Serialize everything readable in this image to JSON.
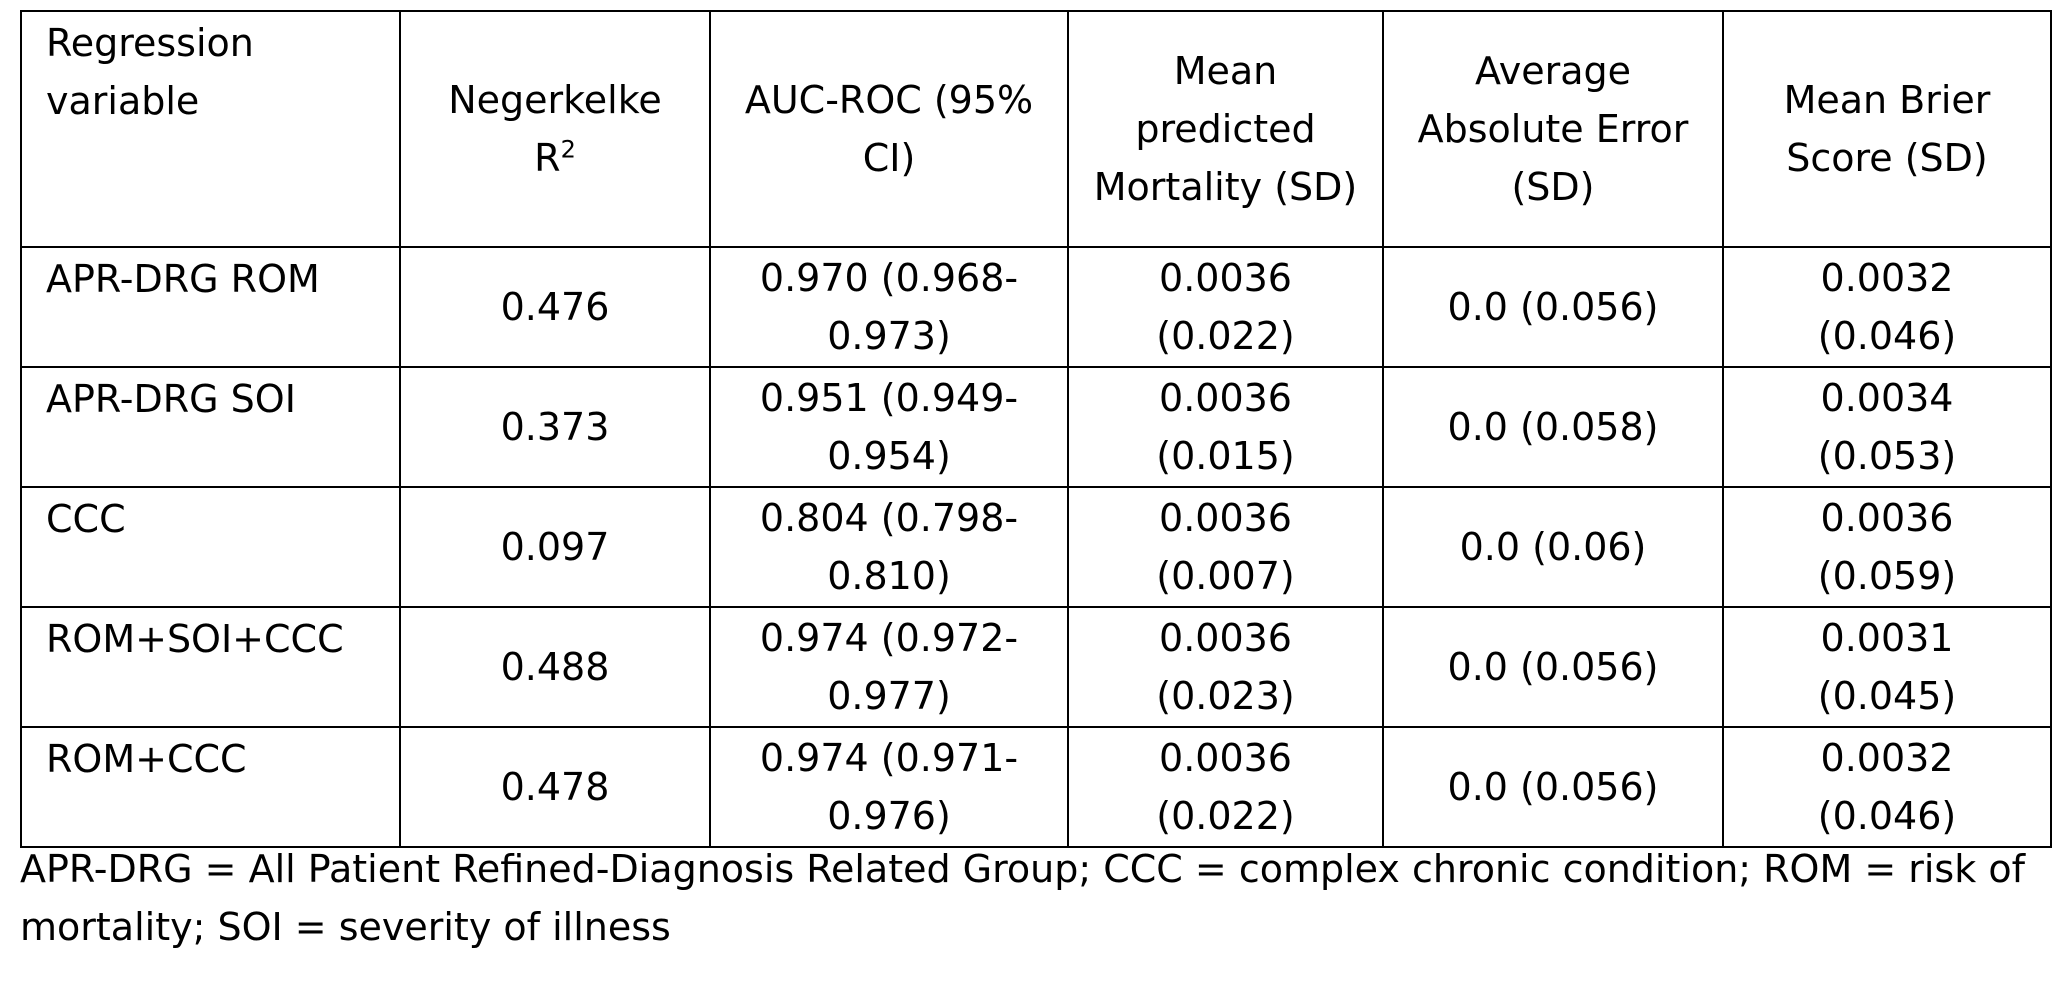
{
  "table": {
    "headers": [
      "Regression variable",
      "Negerkelke R",
      "AUC-ROC (95% CI)",
      "Mean predicted Mortality (SD)",
      "Average Absolute Error (SD)",
      "Mean Brier Score (SD)"
    ],
    "header_superscript": "2",
    "rows": [
      [
        "APR-DRG ROM",
        "0.476",
        "0.970 (0.968-\n0.973)",
        "0.0036\n(0.022)",
        "0.0 (0.056)",
        "0.0032\n(0.046)"
      ],
      [
        "APR-DRG SOI",
        "0.373",
        "0.951 (0.949-\n0.954)",
        "0.0036\n(0.015)",
        "0.0 (0.058)",
        "0.0034\n(0.053)"
      ],
      [
        "CCC",
        "0.097",
        "0.804 (0.798-\n0.810)",
        "0.0036\n(0.007)",
        "0.0 (0.06)",
        "0.0036\n(0.059)"
      ],
      [
        "ROM+SOI+CCC",
        "0.488",
        "0.974 (0.972-\n0.977)",
        "0.0036\n(0.023)",
        "0.0 (0.056)",
        "0.0031\n(0.045)"
      ],
      [
        "ROM+CCC",
        "0.478",
        "0.974 (0.971-\n0.976)",
        "0.0036\n(0.022)",
        "0.0 (0.056)",
        "0.0032\n(0.046)"
      ]
    ]
  },
  "footnote": "APR-DRG = All Patient Refined-Diagnosis Related Group; CCC = complex chronic condition; ROM = risk of mortality; SOI = severity of illness"
}
